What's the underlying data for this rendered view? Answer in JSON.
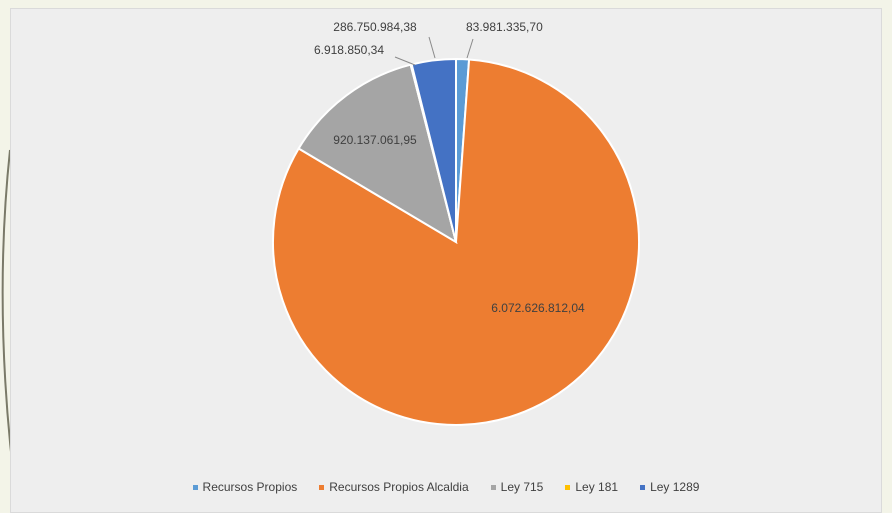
{
  "chart_data": {
    "type": "pie",
    "categories": [
      "Recursos Propios",
      "Recursos Propios Alcaldia",
      "Ley 715",
      "Ley 181",
      "Ley 1289"
    ],
    "values": [
      83981335.7,
      6072626812.04,
      920137061.95,
      6918850.34,
      286750984.38
    ],
    "value_labels": [
      "83.981.335,70",
      "6.072.626.812,04",
      "920.137.061,95",
      "6.918.850,34",
      "286.750.984,38"
    ],
    "colors": [
      "#5b9bd5",
      "#ed7d31",
      "#a5a5a5",
      "#ffc000",
      "#4472c4"
    ],
    "legend_position": "bottom",
    "title": ""
  }
}
